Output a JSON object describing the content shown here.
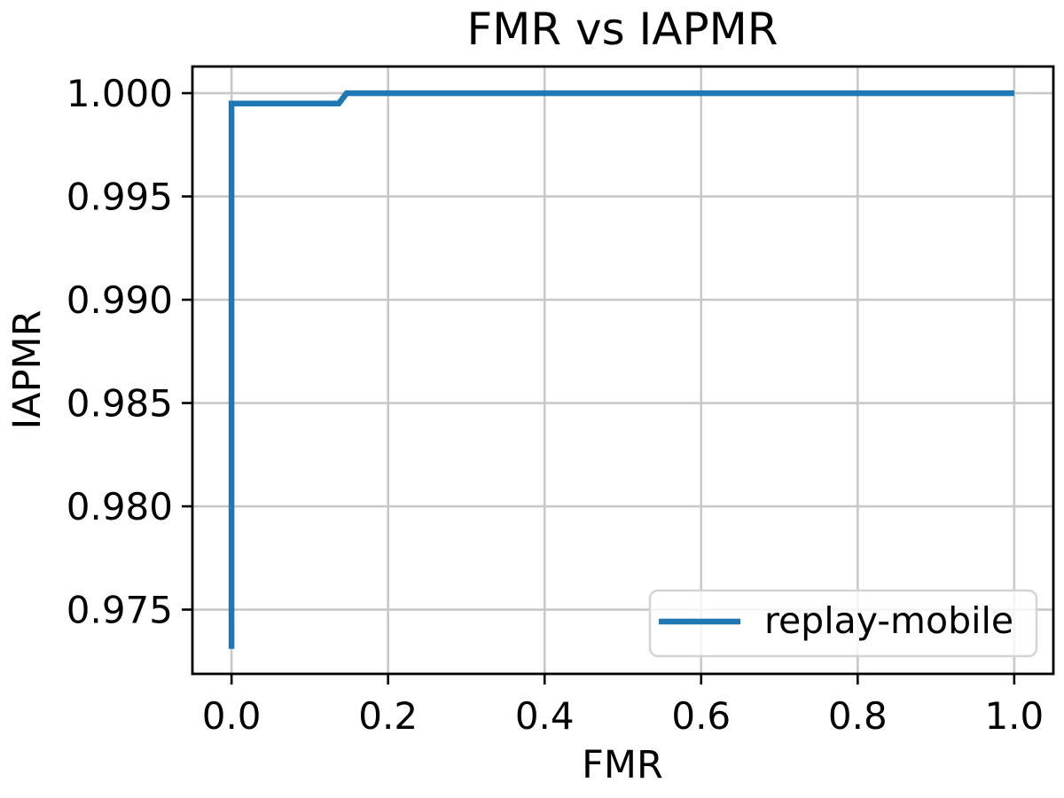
{
  "chart_data": {
    "type": "line",
    "title": "FMR vs IAPMR",
    "xlabel": "FMR",
    "ylabel": "IAPMR",
    "xlim": [
      -0.05,
      1.05
    ],
    "ylim": [
      0.97189,
      1.00129
    ],
    "grid": true,
    "xticks": {
      "values": [
        0.0,
        0.2,
        0.4,
        0.6,
        0.8,
        1.0
      ],
      "labels": [
        "0.0",
        "0.2",
        "0.4",
        "0.6",
        "0.8",
        "1.0"
      ]
    },
    "yticks": {
      "values": [
        0.975,
        0.98,
        0.985,
        0.99,
        0.995,
        1.0
      ],
      "labels": [
        "0.975",
        "0.980",
        "0.985",
        "0.990",
        "0.995",
        "1.000"
      ]
    },
    "series": [
      {
        "name": "replay-mobile",
        "color": "#1f77b4",
        "points": [
          [
            0.0,
            0.9731
          ],
          [
            0.0,
            0.9995
          ],
          [
            0.137,
            0.9995
          ],
          [
            0.147,
            1.0
          ],
          [
            1.0,
            1.0
          ]
        ]
      }
    ],
    "legend": {
      "position": "lower right",
      "entries": [
        {
          "label": "replay-mobile",
          "color": "#1f77b4"
        }
      ]
    }
  },
  "colors": {
    "line": "#1f77b4",
    "grid": "#c8c8c8",
    "spine": "#000000",
    "text": "#000000",
    "legend_border": "#d4d4d4",
    "legend_fill": "#ffffff",
    "background": "#ffffff"
  }
}
